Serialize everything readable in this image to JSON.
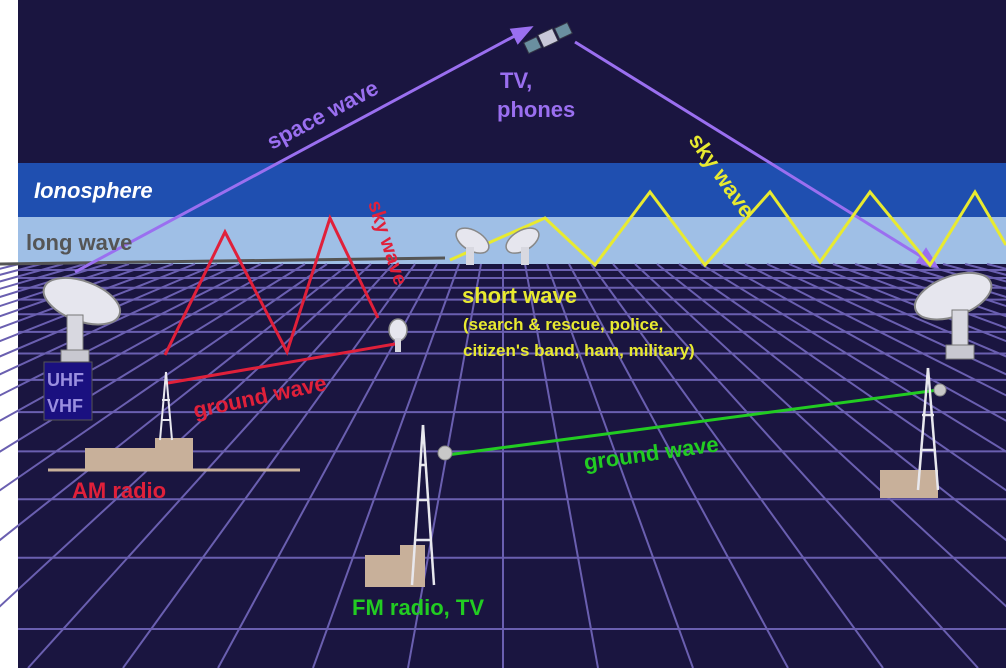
{
  "labels": {
    "ionosphere": "Ionosphere",
    "long_wave": "long wave",
    "space_wave": "space wave",
    "tv_phones_line1": "TV,",
    "tv_phones_line2": "phones",
    "sky_wave_yellow": "sky wave",
    "sky_wave_red": "sky wave",
    "short_wave": "short wave",
    "short_wave_desc_line1": "(search & rescue, police,",
    "short_wave_desc_line2": "citizen's band, ham, military)",
    "uhf": "UHF",
    "vhf": "VHF",
    "ground_wave_red": "ground wave",
    "am_radio": "AM radio",
    "ground_wave_green": "ground wave",
    "fm_radio_tv": "FM radio, TV"
  },
  "colors": {
    "background": "#1a1540",
    "ionosphere_dark": "#1f4fb0",
    "ionosphere_light": "#9fbfe6",
    "grid": "#6a5fb0",
    "space_wave": "#9a6ff0",
    "sky_wave_yellow": "#e8ea30",
    "am_red": "#e0203a",
    "fm_green": "#22cc22",
    "long_wave": "#555555",
    "building": "#c8b09a"
  },
  "icons": [
    "satellite-icon",
    "dish-antenna-icon",
    "radio-tower-icon",
    "building-icon"
  ]
}
